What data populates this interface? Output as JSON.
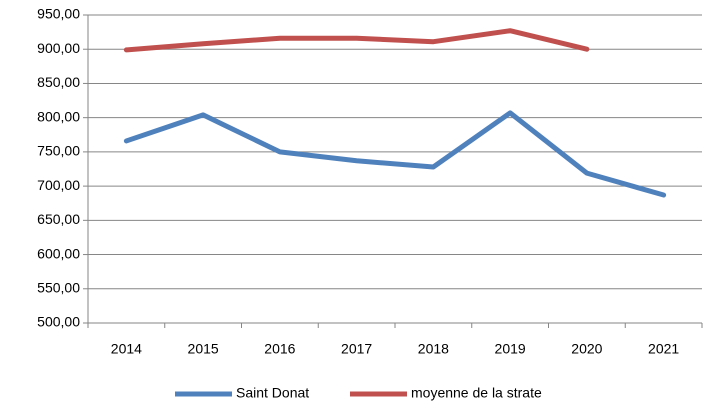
{
  "chart_data": {
    "type": "line",
    "categories": [
      "2014",
      "2015",
      "2016",
      "2017",
      "2018",
      "2019",
      "2020",
      "2021"
    ],
    "series": [
      {
        "name": "Saint Donat",
        "color": "#4f81bd",
        "values": [
          766,
          804,
          750,
          737,
          728,
          807,
          719,
          687
        ]
      },
      {
        "name": "moyenne de la strate",
        "color": "#c0504d",
        "values": [
          899,
          908,
          916,
          916,
          911,
          927,
          900,
          null
        ]
      }
    ],
    "ylim": [
      500,
      950
    ],
    "yticks": [
      {
        "value": 500,
        "label": "500,00"
      },
      {
        "value": 550,
        "label": "550,00"
      },
      {
        "value": 600,
        "label": "600,00"
      },
      {
        "value": 650,
        "label": "650,00"
      },
      {
        "value": 700,
        "label": "700,00"
      },
      {
        "value": 750,
        "label": "750,00"
      },
      {
        "value": 800,
        "label": "800,00"
      },
      {
        "value": 850,
        "label": "850,00"
      },
      {
        "value": 900,
        "label": "900,00"
      },
      {
        "value": 950,
        "label": "950,00"
      }
    ],
    "grid": true,
    "legend": "bottom"
  }
}
